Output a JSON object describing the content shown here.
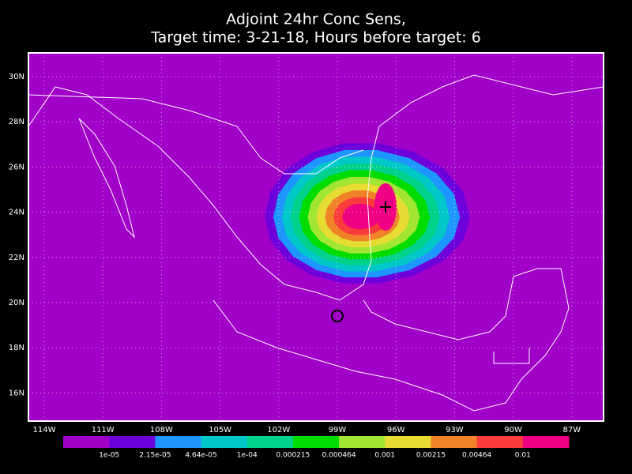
{
  "title": [
    "Adjoint 24hr Conc Sens,",
    "Target time: 3-21-18, Hours before target: 6"
  ],
  "lat_labels": [
    "30N",
    "28N",
    "26N",
    "24N",
    "22N",
    "20N",
    "18N",
    "16N"
  ],
  "lon_labels": [
    "114W",
    "111W",
    "108W",
    "105W",
    "102W",
    "99W",
    "96W",
    "93W",
    "90W",
    "87W"
  ],
  "colorbar": {
    "colors": [
      "#a000c8",
      "#6e00dc",
      "#1e96ff",
      "#00c8c8",
      "#00d28c",
      "#00dc00",
      "#a0e632",
      "#e6dc32",
      "#f08228",
      "#fa3c3c",
      "#f00082"
    ],
    "labels": [
      "1e-05",
      "2.15e-05",
      "4.64e-05",
      "1e-04",
      "0.000215",
      "0.000464",
      "0.001",
      "0.00215",
      "0.00464",
      "0.01"
    ]
  }
}
